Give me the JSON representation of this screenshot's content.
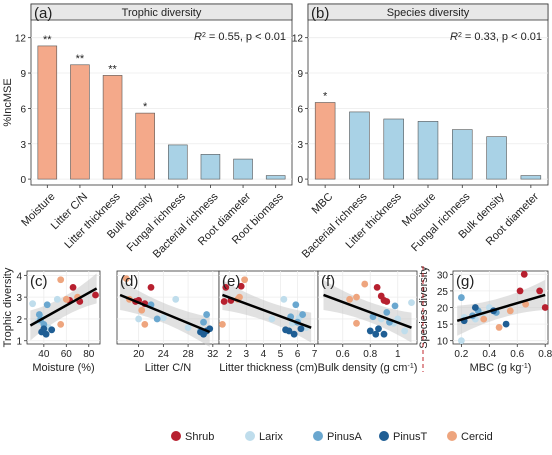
{
  "colors": {
    "bar_sig": "#F4A98A",
    "bar_nonsig": "#A9D2E6",
    "Shrub": "#B7202F",
    "Larix": "#BFDDEC",
    "PinusA": "#6AA7CF",
    "PinusT": "#1F5E94",
    "Cercid": "#EEA57E",
    "divider": "#C0272D"
  },
  "chart_data": [
    {
      "panel": "(a)",
      "type": "bar",
      "title": "Trophic diversity",
      "annotation": {
        "r2": "R",
        "r2_sup": "2",
        "text": " = 0.55, p < 0.01"
      },
      "ylabel": "%IncMSE",
      "ylim": [
        -0.5,
        13.5
      ],
      "yticks": [
        0,
        3,
        6,
        9,
        12
      ],
      "categories": [
        "Moisture",
        "Litter C/N",
        "Litter thickness",
        "Bulk density",
        "Fungal richness",
        "Bacterial richness",
        "Root diameter",
        "Root biomass"
      ],
      "values": [
        11.3,
        9.7,
        8.8,
        5.6,
        2.9,
        2.1,
        1.7,
        0.3
      ],
      "significance": [
        "**",
        "**",
        "**",
        "*",
        "",
        "",
        "",
        ""
      ]
    },
    {
      "panel": "(b)",
      "type": "bar",
      "title": "Species diversity",
      "annotation": {
        "r2": "R",
        "r2_sup": "2",
        "text": " = 0.33, p < 0.01"
      },
      "ylim": [
        -0.5,
        13.5
      ],
      "yticks": [
        0,
        3,
        6,
        9,
        12
      ],
      "categories": [
        "MBC",
        "Bacterial richness",
        "Litter thickness",
        "Moisture",
        "Fungal richness",
        "Bulk density",
        "Root diameter"
      ],
      "values": [
        6.5,
        5.7,
        5.1,
        4.9,
        4.2,
        3.6,
        0.3
      ],
      "significance": [
        "*",
        "",
        "",
        "",
        "",
        "",
        ""
      ]
    },
    {
      "panel": "(c)",
      "type": "scatter",
      "xlabel": "Moisture (%)",
      "ylabel": "Trophic diversity",
      "xlim": [
        25,
        90
      ],
      "ylim": [
        0.85,
        4.2
      ],
      "xticks": [
        40,
        60,
        80
      ],
      "yticks": [
        1,
        2,
        3,
        4
      ],
      "fit": {
        "x": [
          28,
          87
        ],
        "y": [
          1.7,
          3.4
        ]
      },
      "points": [
        {
          "g": "Shrub",
          "x": 66,
          "y": 3.45
        },
        {
          "g": "Shrub",
          "x": 63,
          "y": 2.85
        },
        {
          "g": "Shrub",
          "x": 72,
          "y": 2.8
        },
        {
          "g": "Shrub",
          "x": 86,
          "y": 3.1
        },
        {
          "g": "Larix",
          "x": 30,
          "y": 2.7
        },
        {
          "g": "Larix",
          "x": 35,
          "y": 1.9
        },
        {
          "g": "Larix",
          "x": 38,
          "y": 2.05
        },
        {
          "g": "Larix",
          "x": 44,
          "y": 1.6
        },
        {
          "g": "Larix",
          "x": 52,
          "y": 2.9
        },
        {
          "g": "PinusA",
          "x": 36,
          "y": 2.2
        },
        {
          "g": "PinusA",
          "x": 40,
          "y": 1.75
        },
        {
          "g": "PinusA",
          "x": 43,
          "y": 2.65
        },
        {
          "g": "PinusA",
          "x": 37,
          "y": 1.95
        },
        {
          "g": "PinusT",
          "x": 38,
          "y": 1.4
        },
        {
          "g": "PinusT",
          "x": 42,
          "y": 1.3
        },
        {
          "g": "PinusT",
          "x": 47,
          "y": 1.5
        },
        {
          "g": "PinusT",
          "x": 40,
          "y": 1.55
        },
        {
          "g": "Cercid",
          "x": 55,
          "y": 3.8
        },
        {
          "g": "Cercid",
          "x": 55,
          "y": 1.75
        },
        {
          "g": "Cercid",
          "x": 70,
          "y": 3.0
        },
        {
          "g": "Cercid",
          "x": 60,
          "y": 2.9
        }
      ]
    },
    {
      "panel": "(d)",
      "type": "scatter",
      "xlabel": "Litter C/N",
      "xlim": [
        16.5,
        33
      ],
      "ylim": [
        0.85,
        4.2
      ],
      "xticks": [
        20,
        24,
        28,
        32
      ],
      "yticks": [
        1,
        2,
        3,
        4
      ],
      "fit": {
        "x": [
          17,
          31.5
        ],
        "y": [
          3.1,
          1.4
        ]
      },
      "points": [
        {
          "g": "Shrub",
          "x": 22,
          "y": 3.45
        },
        {
          "g": "Shrub",
          "x": 19.5,
          "y": 2.8
        },
        {
          "g": "Shrub",
          "x": 21,
          "y": 2.7
        },
        {
          "g": "Shrub",
          "x": 20,
          "y": 2.85
        },
        {
          "g": "Larix",
          "x": 26,
          "y": 2.9
        },
        {
          "g": "Larix",
          "x": 20,
          "y": 2.0
        },
        {
          "g": "Larix",
          "x": 24,
          "y": 2.05
        },
        {
          "g": "Larix",
          "x": 28,
          "y": 1.6
        },
        {
          "g": "Larix",
          "x": 30,
          "y": 1.5
        },
        {
          "g": "PinusA",
          "x": 23,
          "y": 2.0
        },
        {
          "g": "PinusA",
          "x": 31,
          "y": 2.2
        },
        {
          "g": "PinusA",
          "x": 30.5,
          "y": 1.85
        },
        {
          "g": "PinusA",
          "x": 22,
          "y": 2.65
        },
        {
          "g": "PinusT",
          "x": 30.5,
          "y": 1.3
        },
        {
          "g": "PinusT",
          "x": 31,
          "y": 1.45
        },
        {
          "g": "PinusT",
          "x": 31.5,
          "y": 1.55
        },
        {
          "g": "PinusT",
          "x": 30,
          "y": 1.4
        },
        {
          "g": "Cercid",
          "x": 18,
          "y": 3.85
        },
        {
          "g": "Cercid",
          "x": 21,
          "y": 1.75
        },
        {
          "g": "Cercid",
          "x": 18.5,
          "y": 2.9
        },
        {
          "g": "Cercid",
          "x": 20.5,
          "y": 2.4
        }
      ]
    },
    {
      "panel": "(e)",
      "type": "scatter",
      "xlabel": "Litter thickness (cm)",
      "xlim": [
        1.4,
        7.2
      ],
      "ylim": [
        0.85,
        4.2
      ],
      "xticks": [
        2,
        3,
        4,
        5,
        6,
        7
      ],
      "yticks": [
        1,
        2,
        3,
        4
      ],
      "fit": {
        "x": [
          1.6,
          6.8
        ],
        "y": [
          3.1,
          1.6
        ]
      },
      "points": [
        {
          "g": "Shrub",
          "x": 1.8,
          "y": 3.45
        },
        {
          "g": "Shrub",
          "x": 2.7,
          "y": 3.5
        },
        {
          "g": "Shrub",
          "x": 1.7,
          "y": 2.8
        },
        {
          "g": "Shrub",
          "x": 2.1,
          "y": 2.85
        },
        {
          "g": "Larix",
          "x": 5.2,
          "y": 2.9
        },
        {
          "g": "Larix",
          "x": 4.5,
          "y": 2.0
        },
        {
          "g": "Larix",
          "x": 6.1,
          "y": 2.05
        },
        {
          "g": "Larix",
          "x": 6.5,
          "y": 1.6
        },
        {
          "g": "Larix",
          "x": 5.7,
          "y": 1.8
        },
        {
          "g": "PinusA",
          "x": 5.6,
          "y": 2.1
        },
        {
          "g": "PinusA",
          "x": 6.3,
          "y": 2.2
        },
        {
          "g": "PinusA",
          "x": 6.0,
          "y": 1.85
        },
        {
          "g": "PinusA",
          "x": 5.9,
          "y": 2.65
        },
        {
          "g": "PinusT",
          "x": 5.5,
          "y": 1.45
        },
        {
          "g": "PinusT",
          "x": 5.8,
          "y": 1.3
        },
        {
          "g": "PinusT",
          "x": 6.2,
          "y": 1.55
        },
        {
          "g": "PinusT",
          "x": 5.3,
          "y": 1.5
        },
        {
          "g": "Cercid",
          "x": 2.9,
          "y": 3.8
        },
        {
          "g": "Cercid",
          "x": 2.6,
          "y": 3.0
        },
        {
          "g": "Cercid",
          "x": 1.6,
          "y": 1.75
        },
        {
          "g": "Cercid",
          "x": 2.5,
          "y": 2.9
        }
      ]
    },
    {
      "panel": "(f)",
      "type": "scatter",
      "xlabel": "Bulk density (g cm",
      "xlabel_sup": "-1",
      "xlabel_end": ")",
      "xlim": [
        0.42,
        1.14
      ],
      "ylim": [
        0.85,
        4.2
      ],
      "xticks": [
        0.6,
        0.8,
        1.0
      ],
      "yticks": [
        1,
        2,
        3,
        4
      ],
      "fit": {
        "x": [
          0.46,
          1.1
        ],
        "y": [
          3.1,
          1.6
        ]
      },
      "points": [
        {
          "g": "Shrub",
          "x": 0.85,
          "y": 3.45
        },
        {
          "g": "Shrub",
          "x": 0.88,
          "y": 3.05
        },
        {
          "g": "Shrub",
          "x": 0.92,
          "y": 2.8
        },
        {
          "g": "Shrub",
          "x": 0.9,
          "y": 2.85
        },
        {
          "g": "Larix",
          "x": 1.1,
          "y": 2.75
        },
        {
          "g": "Larix",
          "x": 0.88,
          "y": 2.0
        },
        {
          "g": "Larix",
          "x": 1.0,
          "y": 2.0
        },
        {
          "g": "Larix",
          "x": 1.05,
          "y": 1.45
        },
        {
          "g": "Larix",
          "x": 0.97,
          "y": 1.8
        },
        {
          "g": "PinusA",
          "x": 0.82,
          "y": 2.1
        },
        {
          "g": "PinusA",
          "x": 0.92,
          "y": 2.3
        },
        {
          "g": "PinusA",
          "x": 0.94,
          "y": 1.85
        },
        {
          "g": "PinusA",
          "x": 0.98,
          "y": 2.6
        },
        {
          "g": "PinusT",
          "x": 0.8,
          "y": 1.45
        },
        {
          "g": "PinusT",
          "x": 0.84,
          "y": 1.3
        },
        {
          "g": "PinusT",
          "x": 0.9,
          "y": 1.3
        },
        {
          "g": "PinusT",
          "x": 0.86,
          "y": 1.55
        },
        {
          "g": "Cercid",
          "x": 0.7,
          "y": 3.0
        },
        {
          "g": "Cercid",
          "x": 0.65,
          "y": 2.9
        },
        {
          "g": "Cercid",
          "x": 0.76,
          "y": 3.6
        },
        {
          "g": "Cercid",
          "x": 0.7,
          "y": 1.8
        }
      ]
    },
    {
      "panel": "(g)",
      "type": "scatter",
      "xlabel": "MBC (g kg",
      "xlabel_sup": "-1",
      "xlabel_end": ")",
      "ylabel": "Species diversity",
      "xlim": [
        0.14,
        0.82
      ],
      "ylim": [
        9,
        31
      ],
      "xticks": [
        0.2,
        0.4,
        0.6,
        0.8
      ],
      "yticks": [
        10,
        15,
        20,
        25,
        30
      ],
      "fit": {
        "x": [
          0.17,
          0.8
        ],
        "y": [
          16.0,
          23.8
        ]
      },
      "points": [
        {
          "g": "Shrub",
          "x": 0.65,
          "y": 30
        },
        {
          "g": "Shrub",
          "x": 0.62,
          "y": 25
        },
        {
          "g": "Shrub",
          "x": 0.76,
          "y": 25
        },
        {
          "g": "Shrub",
          "x": 0.8,
          "y": 20
        },
        {
          "g": "Larix",
          "x": 0.2,
          "y": 10
        },
        {
          "g": "Larix",
          "x": 0.22,
          "y": 17
        },
        {
          "g": "Larix",
          "x": 0.35,
          "y": 18
        },
        {
          "g": "Larix",
          "x": 0.3,
          "y": 16.5
        },
        {
          "g": "Larix",
          "x": 0.4,
          "y": 20
        },
        {
          "g": "PinusA",
          "x": 0.2,
          "y": 23
        },
        {
          "g": "PinusA",
          "x": 0.28,
          "y": 17.5
        },
        {
          "g": "PinusA",
          "x": 0.45,
          "y": 18.5
        },
        {
          "g": "PinusA",
          "x": 0.32,
          "y": 19
        },
        {
          "g": "PinusT",
          "x": 0.22,
          "y": 16
        },
        {
          "g": "PinusT",
          "x": 0.3,
          "y": 20
        },
        {
          "g": "PinusT",
          "x": 0.43,
          "y": 19
        },
        {
          "g": "PinusT",
          "x": 0.52,
          "y": 15
        },
        {
          "g": "Cercid",
          "x": 0.66,
          "y": 21
        },
        {
          "g": "Cercid",
          "x": 0.36,
          "y": 16.5
        },
        {
          "g": "Cercid",
          "x": 0.47,
          "y": 14
        },
        {
          "g": "Cercid",
          "x": 0.55,
          "y": 19
        }
      ]
    }
  ],
  "legend": [
    "Shrub",
    "Larix",
    "PinusA",
    "PinusT",
    "Cercid"
  ]
}
